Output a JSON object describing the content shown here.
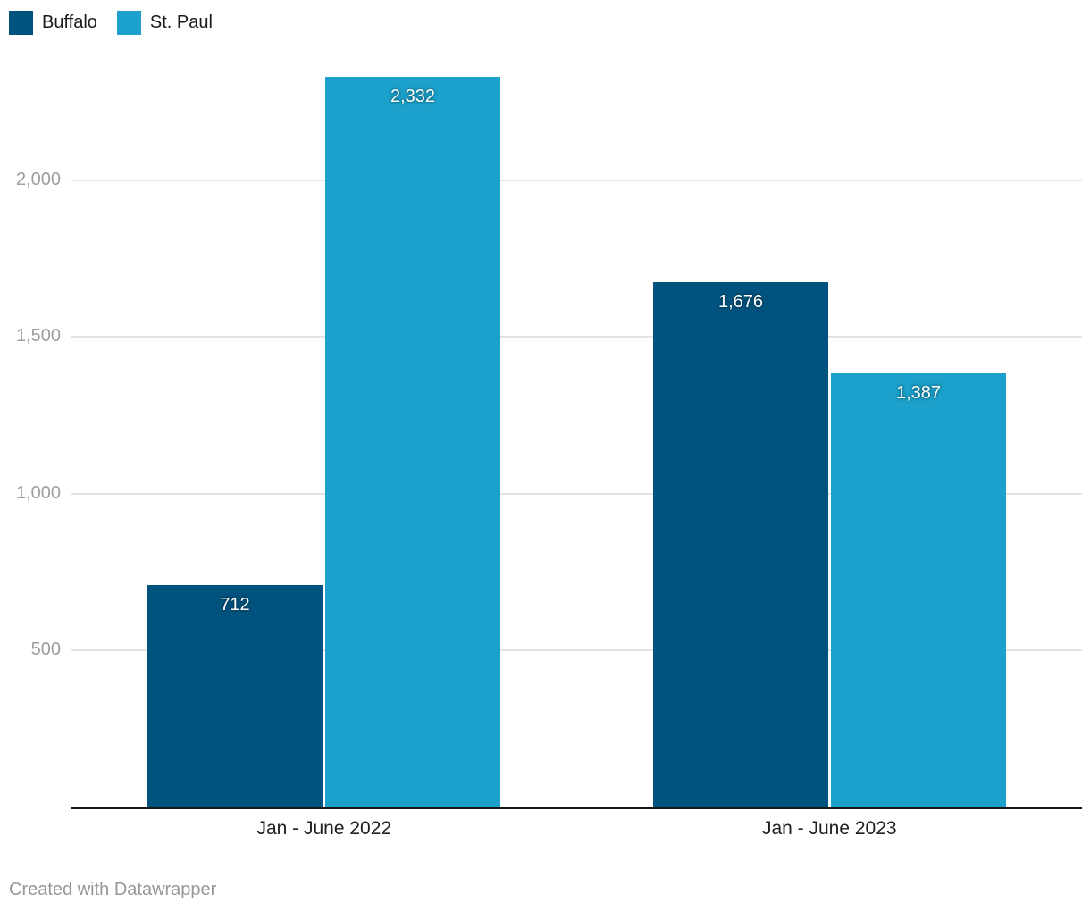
{
  "legend": {
    "items": [
      {
        "label": "Buffalo",
        "color": "#00537e"
      },
      {
        "label": "St. Paul",
        "color": "#1ba1cb"
      }
    ]
  },
  "footer": {
    "text": "Created with Datawrapper"
  },
  "chart_data": {
    "type": "bar",
    "title": "",
    "categories": [
      "Jan - June 2022",
      "Jan - June 2023"
    ],
    "series": [
      {
        "name": "Buffalo",
        "color": "#00537e",
        "values": [
          712,
          1676
        ],
        "labels": [
          "712",
          "1,676"
        ]
      },
      {
        "name": "St. Paul",
        "color": "#1ba1cb",
        "values": [
          2332,
          1387
        ],
        "labels": [
          "2,332",
          "1,387"
        ]
      }
    ],
    "yticks": [
      {
        "value": 500,
        "label": "500"
      },
      {
        "value": 1000,
        "label": "1,000"
      },
      {
        "value": 1500,
        "label": "1,500"
      },
      {
        "value": 2000,
        "label": "2,000"
      }
    ],
    "ylim": [
      0,
      2350
    ],
    "xlabel": "",
    "ylabel": "",
    "grid": true,
    "legend_position": "top-left",
    "value_labels": "inside-top",
    "attribution": "Created with Datawrapper",
    "colors": {
      "gridline": "#e3e3e3",
      "axis": "#161616",
      "tick_text": "#9d9d9d",
      "category_text": "#202020",
      "value_text": "#ffffff"
    }
  }
}
